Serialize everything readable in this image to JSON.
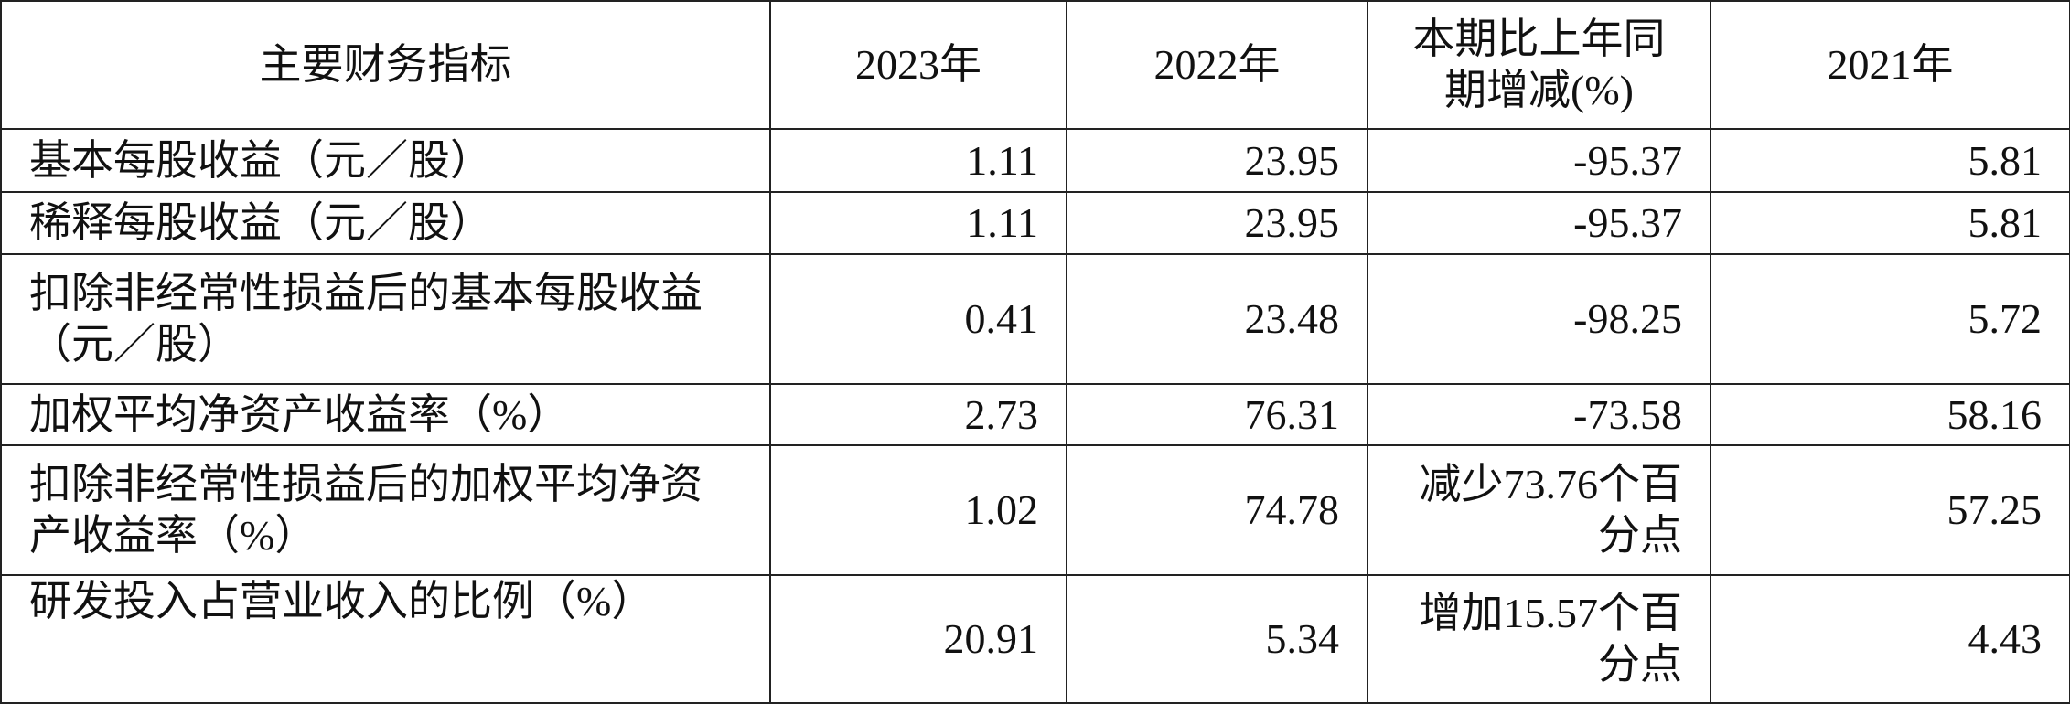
{
  "table": {
    "header": [
      "主要财务指标",
      "2023年",
      "2022年",
      "本期比上年同期增减(%)",
      "2021年"
    ],
    "rows": [
      [
        "基本每股收益（元／股）",
        "1.11",
        "23.95",
        "-95.37",
        "5.81"
      ],
      [
        "稀释每股收益（元／股）",
        "1.11",
        "23.95",
        "-95.37",
        "5.81"
      ],
      [
        "扣除非经常性损益后的基本每股收益（元／股）",
        "0.41",
        "23.48",
        "-98.25",
        "5.72"
      ],
      [
        "加权平均净资产收益率（%）",
        "2.73",
        "76.31",
        "-73.58",
        "58.16"
      ],
      [
        "扣除非经常性损益后的加权平均净资产收益率（%）",
        "1.02",
        "74.78",
        "减少73.76个百分点",
        "57.25"
      ],
      [
        "研发投入占营业收入的比例（%）",
        "20.91",
        "5.34",
        "增加15.57个百分点",
        "4.43"
      ]
    ]
  }
}
